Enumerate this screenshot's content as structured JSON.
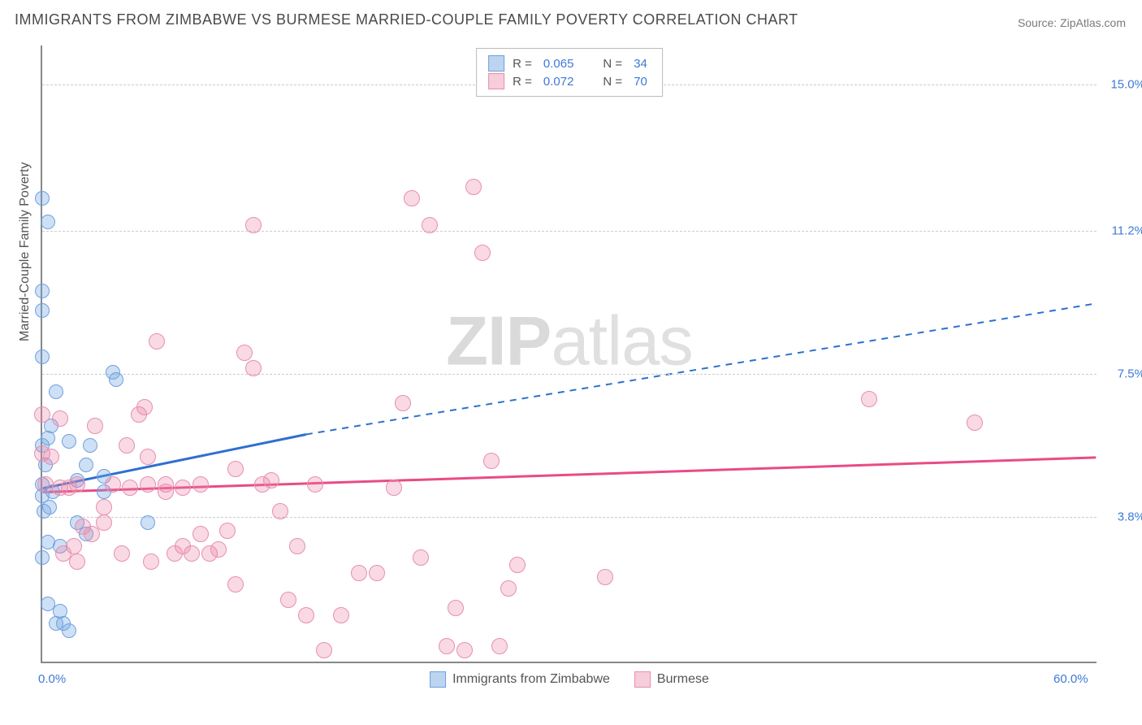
{
  "title": "IMMIGRANTS FROM ZIMBABWE VS BURMESE MARRIED-COUPLE FAMILY POVERTY CORRELATION CHART",
  "source": "Source: ZipAtlas.com",
  "yaxis_title": "Married-Couple Family Poverty",
  "watermark_bold": "ZIP",
  "watermark_rest": "atlas",
  "chart": {
    "type": "scatter",
    "xlim": [
      0.0,
      60.0
    ],
    "ylim": [
      0.0,
      16.0
    ],
    "x_ticks": [
      {
        "value": 0.0,
        "label": "0.0%"
      },
      {
        "value": 60.0,
        "label": "60.0%"
      }
    ],
    "y_gridlines": [
      {
        "value": 3.8,
        "label": "3.8%"
      },
      {
        "value": 7.5,
        "label": "7.5%"
      },
      {
        "value": 11.2,
        "label": "11.2%"
      },
      {
        "value": 15.0,
        "label": "15.0%"
      }
    ],
    "background_color": "#ffffff",
    "grid_color": "#cccccc",
    "axis_color": "#888888",
    "tick_label_color": "#3f79d6",
    "title_color": "#4a4a4a",
    "title_fontsize": 18,
    "label_fontsize": 16
  },
  "series": [
    {
      "name": "Immigrants from Zimbabwe",
      "fill_color": "rgba(115,165,225,0.35)",
      "stroke_color": "#6fa0df",
      "swatch_fill": "#bcd4f0",
      "swatch_border": "#6fa0df",
      "line_color": "#2f6fd0",
      "R": "0.065",
      "N": "34",
      "trend": {
        "x1": 0.0,
        "y1": 4.5,
        "x2_solid": 15.0,
        "y2_solid": 5.9,
        "x2_dash": 60.0,
        "y2_dash": 9.3
      },
      "point_radius": 9,
      "points": [
        [
          0.0,
          4.6
        ],
        [
          0.2,
          5.1
        ],
        [
          0.0,
          5.6
        ],
        [
          0.3,
          5.8
        ],
        [
          0.5,
          6.1
        ],
        [
          0.0,
          12.0
        ],
        [
          0.3,
          11.4
        ],
        [
          0.0,
          9.6
        ],
        [
          0.0,
          9.1
        ],
        [
          0.1,
          3.9
        ],
        [
          0.4,
          4.0
        ],
        [
          0.0,
          2.7
        ],
        [
          0.3,
          3.1
        ],
        [
          1.0,
          3.0
        ],
        [
          1.2,
          1.0
        ],
        [
          1.5,
          0.8
        ],
        [
          0.8,
          1.0
        ],
        [
          1.0,
          1.3
        ],
        [
          0.3,
          1.5
        ],
        [
          0.0,
          4.3
        ],
        [
          0.6,
          4.4
        ],
        [
          1.5,
          5.7
        ],
        [
          2.0,
          4.7
        ],
        [
          2.5,
          5.1
        ],
        [
          2.7,
          5.6
        ],
        [
          3.5,
          4.8
        ],
        [
          4.0,
          7.5
        ],
        [
          4.2,
          7.3
        ],
        [
          6.0,
          3.6
        ],
        [
          2.0,
          3.6
        ],
        [
          2.5,
          3.3
        ],
        [
          3.5,
          4.4
        ],
        [
          0.8,
          7.0
        ],
        [
          0.0,
          7.9
        ]
      ]
    },
    {
      "name": "Burmese",
      "fill_color": "rgba(235,130,165,0.30)",
      "stroke_color": "#e78fb0",
      "swatch_fill": "#f6cdd9",
      "swatch_border": "#e78fb0",
      "line_color": "#e94b86",
      "R": "0.072",
      "N": "70",
      "trend": {
        "x1": 0.0,
        "y1": 4.4,
        "x2_solid": 60.0,
        "y2_solid": 5.3,
        "x2_dash": 60.0,
        "y2_dash": 5.3
      },
      "point_radius": 10,
      "points": [
        [
          0.2,
          4.6
        ],
        [
          1.0,
          4.5
        ],
        [
          1.5,
          4.5
        ],
        [
          2.0,
          4.6
        ],
        [
          2.3,
          3.5
        ],
        [
          2.8,
          3.3
        ],
        [
          3.5,
          3.6
        ],
        [
          4.0,
          4.6
        ],
        [
          5.0,
          4.5
        ],
        [
          5.5,
          6.4
        ],
        [
          6.0,
          4.6
        ],
        [
          6.0,
          5.3
        ],
        [
          7.0,
          4.6
        ],
        [
          7.0,
          4.4
        ],
        [
          8.0,
          4.5
        ],
        [
          8.5,
          2.8
        ],
        [
          9.0,
          3.3
        ],
        [
          9.5,
          2.8
        ],
        [
          10.0,
          2.9
        ],
        [
          10.5,
          3.4
        ],
        [
          11.0,
          2.0
        ],
        [
          11.5,
          8.0
        ],
        [
          12.0,
          7.6
        ],
        [
          12.0,
          11.3
        ],
        [
          12.5,
          4.6
        ],
        [
          13.0,
          4.7
        ],
        [
          13.5,
          3.9
        ],
        [
          14.0,
          1.6
        ],
        [
          15.0,
          1.2
        ],
        [
          16.0,
          0.3
        ],
        [
          17.0,
          1.2
        ],
        [
          18.0,
          2.3
        ],
        [
          19.0,
          2.3
        ],
        [
          20.0,
          4.5
        ],
        [
          20.5,
          6.7
        ],
        [
          21.0,
          12.0
        ],
        [
          21.5,
          2.7
        ],
        [
          22.0,
          11.3
        ],
        [
          23.0,
          0.4
        ],
        [
          23.5,
          1.4
        ],
        [
          24.0,
          0.3
        ],
        [
          24.5,
          12.3
        ],
        [
          25.0,
          10.6
        ],
        [
          25.5,
          5.2
        ],
        [
          26.0,
          0.4
        ],
        [
          26.5,
          1.9
        ],
        [
          27.0,
          2.5
        ],
        [
          32.0,
          2.2
        ],
        [
          47.0,
          6.8
        ],
        [
          53.0,
          6.2
        ],
        [
          5.8,
          6.6
        ],
        [
          6.2,
          2.6
        ],
        [
          7.5,
          2.8
        ],
        [
          3.0,
          6.1
        ],
        [
          3.5,
          4.0
        ],
        [
          4.5,
          2.8
        ],
        [
          1.8,
          3.0
        ],
        [
          1.0,
          6.3
        ],
        [
          0.0,
          6.4
        ],
        [
          0.0,
          5.4
        ],
        [
          0.5,
          5.3
        ],
        [
          1.2,
          2.8
        ],
        [
          2.0,
          2.6
        ],
        [
          8.0,
          3.0
        ],
        [
          9.0,
          4.6
        ],
        [
          11.0,
          5.0
        ],
        [
          14.5,
          3.0
        ],
        [
          15.5,
          4.6
        ],
        [
          6.5,
          8.3
        ],
        [
          4.8,
          5.6
        ]
      ]
    }
  ],
  "legend_top": {
    "R_label": "R =",
    "N_label": "N ="
  },
  "legend_bottom": [
    {
      "swatch_fill": "#bcd4f0",
      "swatch_border": "#6fa0df",
      "label": "Immigrants from Zimbabwe"
    },
    {
      "swatch_fill": "#f6cdd9",
      "swatch_border": "#e78fb0",
      "label": "Burmese"
    }
  ]
}
